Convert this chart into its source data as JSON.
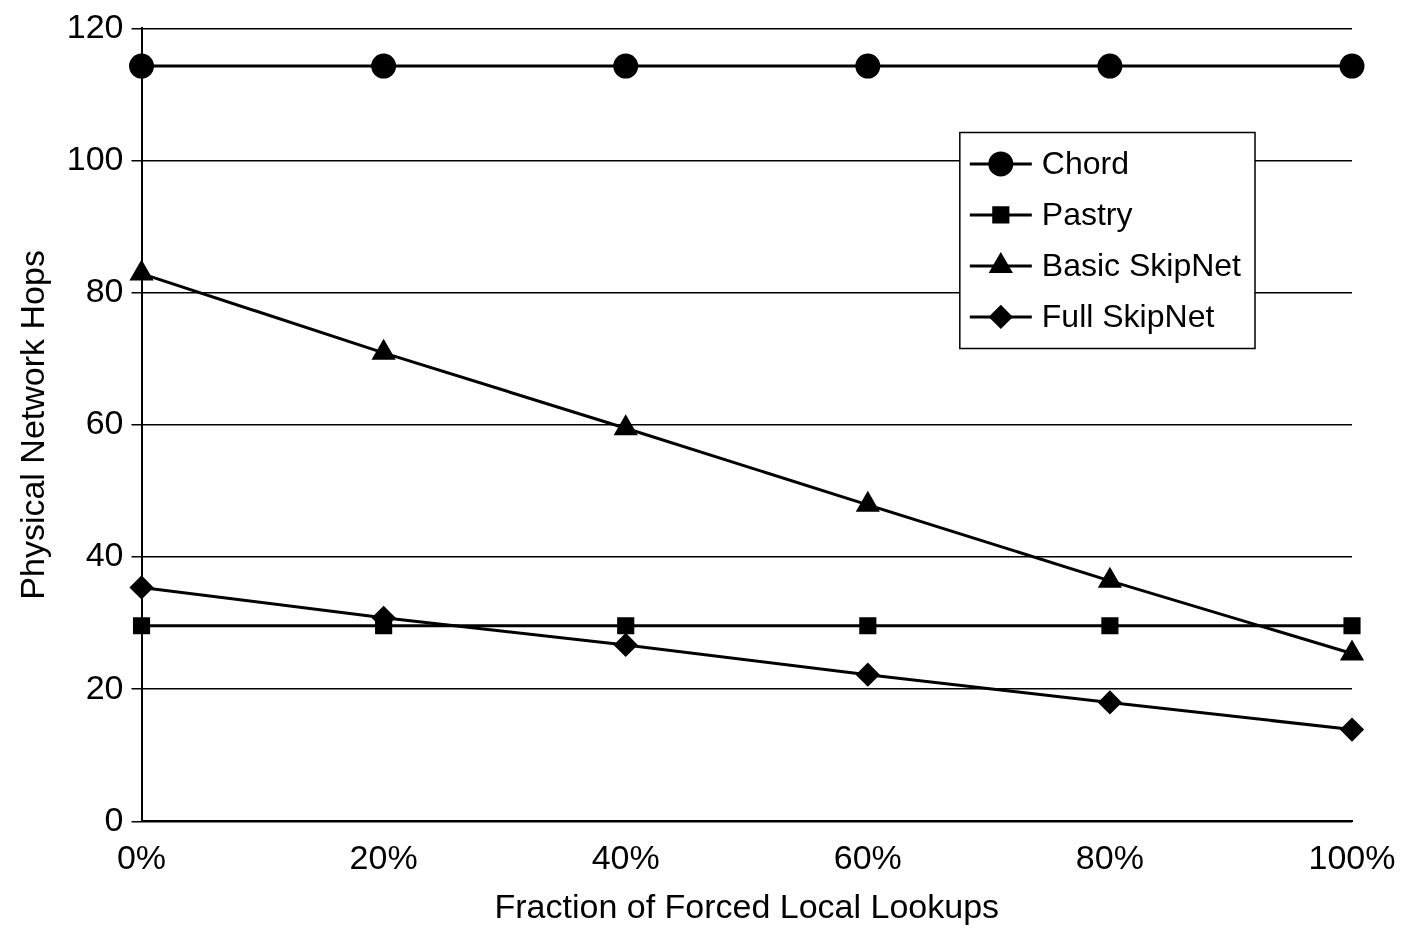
{
  "chart_data": {
    "type": "line",
    "xlabel": "Fraction of Forced Local Lookups",
    "ylabel": "Physical Network Hops",
    "categories": [
      "0%",
      "20%",
      "40%",
      "60%",
      "80%",
      "100%"
    ],
    "series": [
      {
        "name": "Chord",
        "color": "#000000",
        "marker": "circle",
        "values": [
          114.3,
          114.3,
          114.3,
          114.3,
          114.3,
          114.3
        ]
      },
      {
        "name": "Pastry",
        "color": "#000000",
        "marker": "square",
        "values": [
          29.6,
          29.6,
          29.6,
          29.6,
          29.6,
          29.6
        ]
      },
      {
        "name": "Basic SkipNet",
        "color": "#000000",
        "marker": "triangle",
        "values": [
          82.9,
          70.9,
          59.5,
          47.9,
          36.4,
          25.4
        ]
      },
      {
        "name": "Full SkipNet",
        "color": "#000000",
        "marker": "diamond",
        "values": [
          35.4,
          30.8,
          26.7,
          22.2,
          18.0,
          13.9
        ]
      }
    ],
    "ylim": [
      0,
      120
    ],
    "yticks": [
      0,
      20,
      40,
      60,
      80,
      100,
      120
    ],
    "grid": "y",
    "legend": "top right"
  }
}
